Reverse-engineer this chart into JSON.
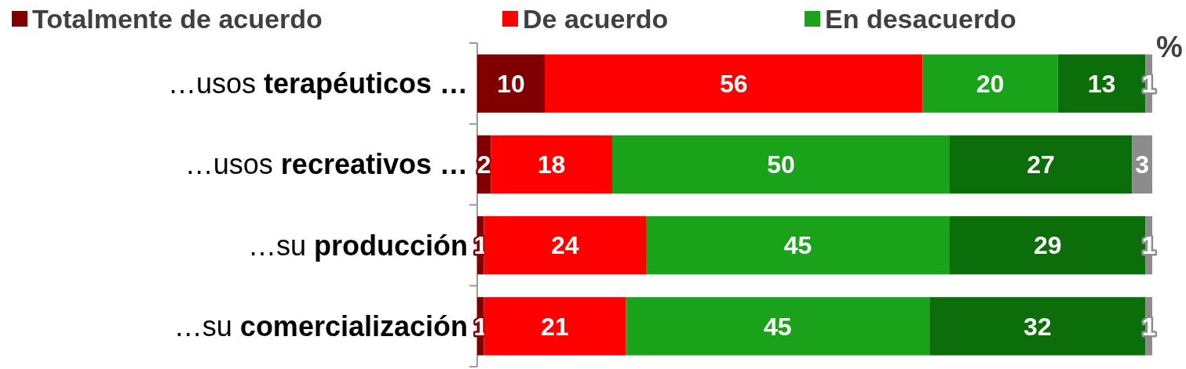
{
  "chart_data": {
    "type": "bar",
    "orientation": "horizontal",
    "stacked": true,
    "data_labels": true,
    "legend": "top",
    "grid": false,
    "categories": [
      "…usos terapéuticos …",
      "…usos recreativos …",
      "…su producción",
      "…su comercialización"
    ],
    "series": [
      {
        "name": "Totalmente de acuerdo",
        "color": "#800000",
        "values": [
          10,
          2,
          1,
          1
        ]
      },
      {
        "name": "De acuerdo",
        "color": "#ff0000",
        "values": [
          56,
          18,
          24,
          21
        ]
      },
      {
        "name": "En desacuerdo",
        "color": "#1aa31a",
        "values": [
          20,
          50,
          45,
          45
        ]
      },
      {
        "color": "#0b6e0b",
        "values": [
          13,
          27,
          29,
          32
        ]
      },
      {
        "color": "#8c8c8c",
        "values": [
          1,
          3,
          1,
          1
        ]
      }
    ],
    "annotations": [
      "%"
    ]
  }
}
